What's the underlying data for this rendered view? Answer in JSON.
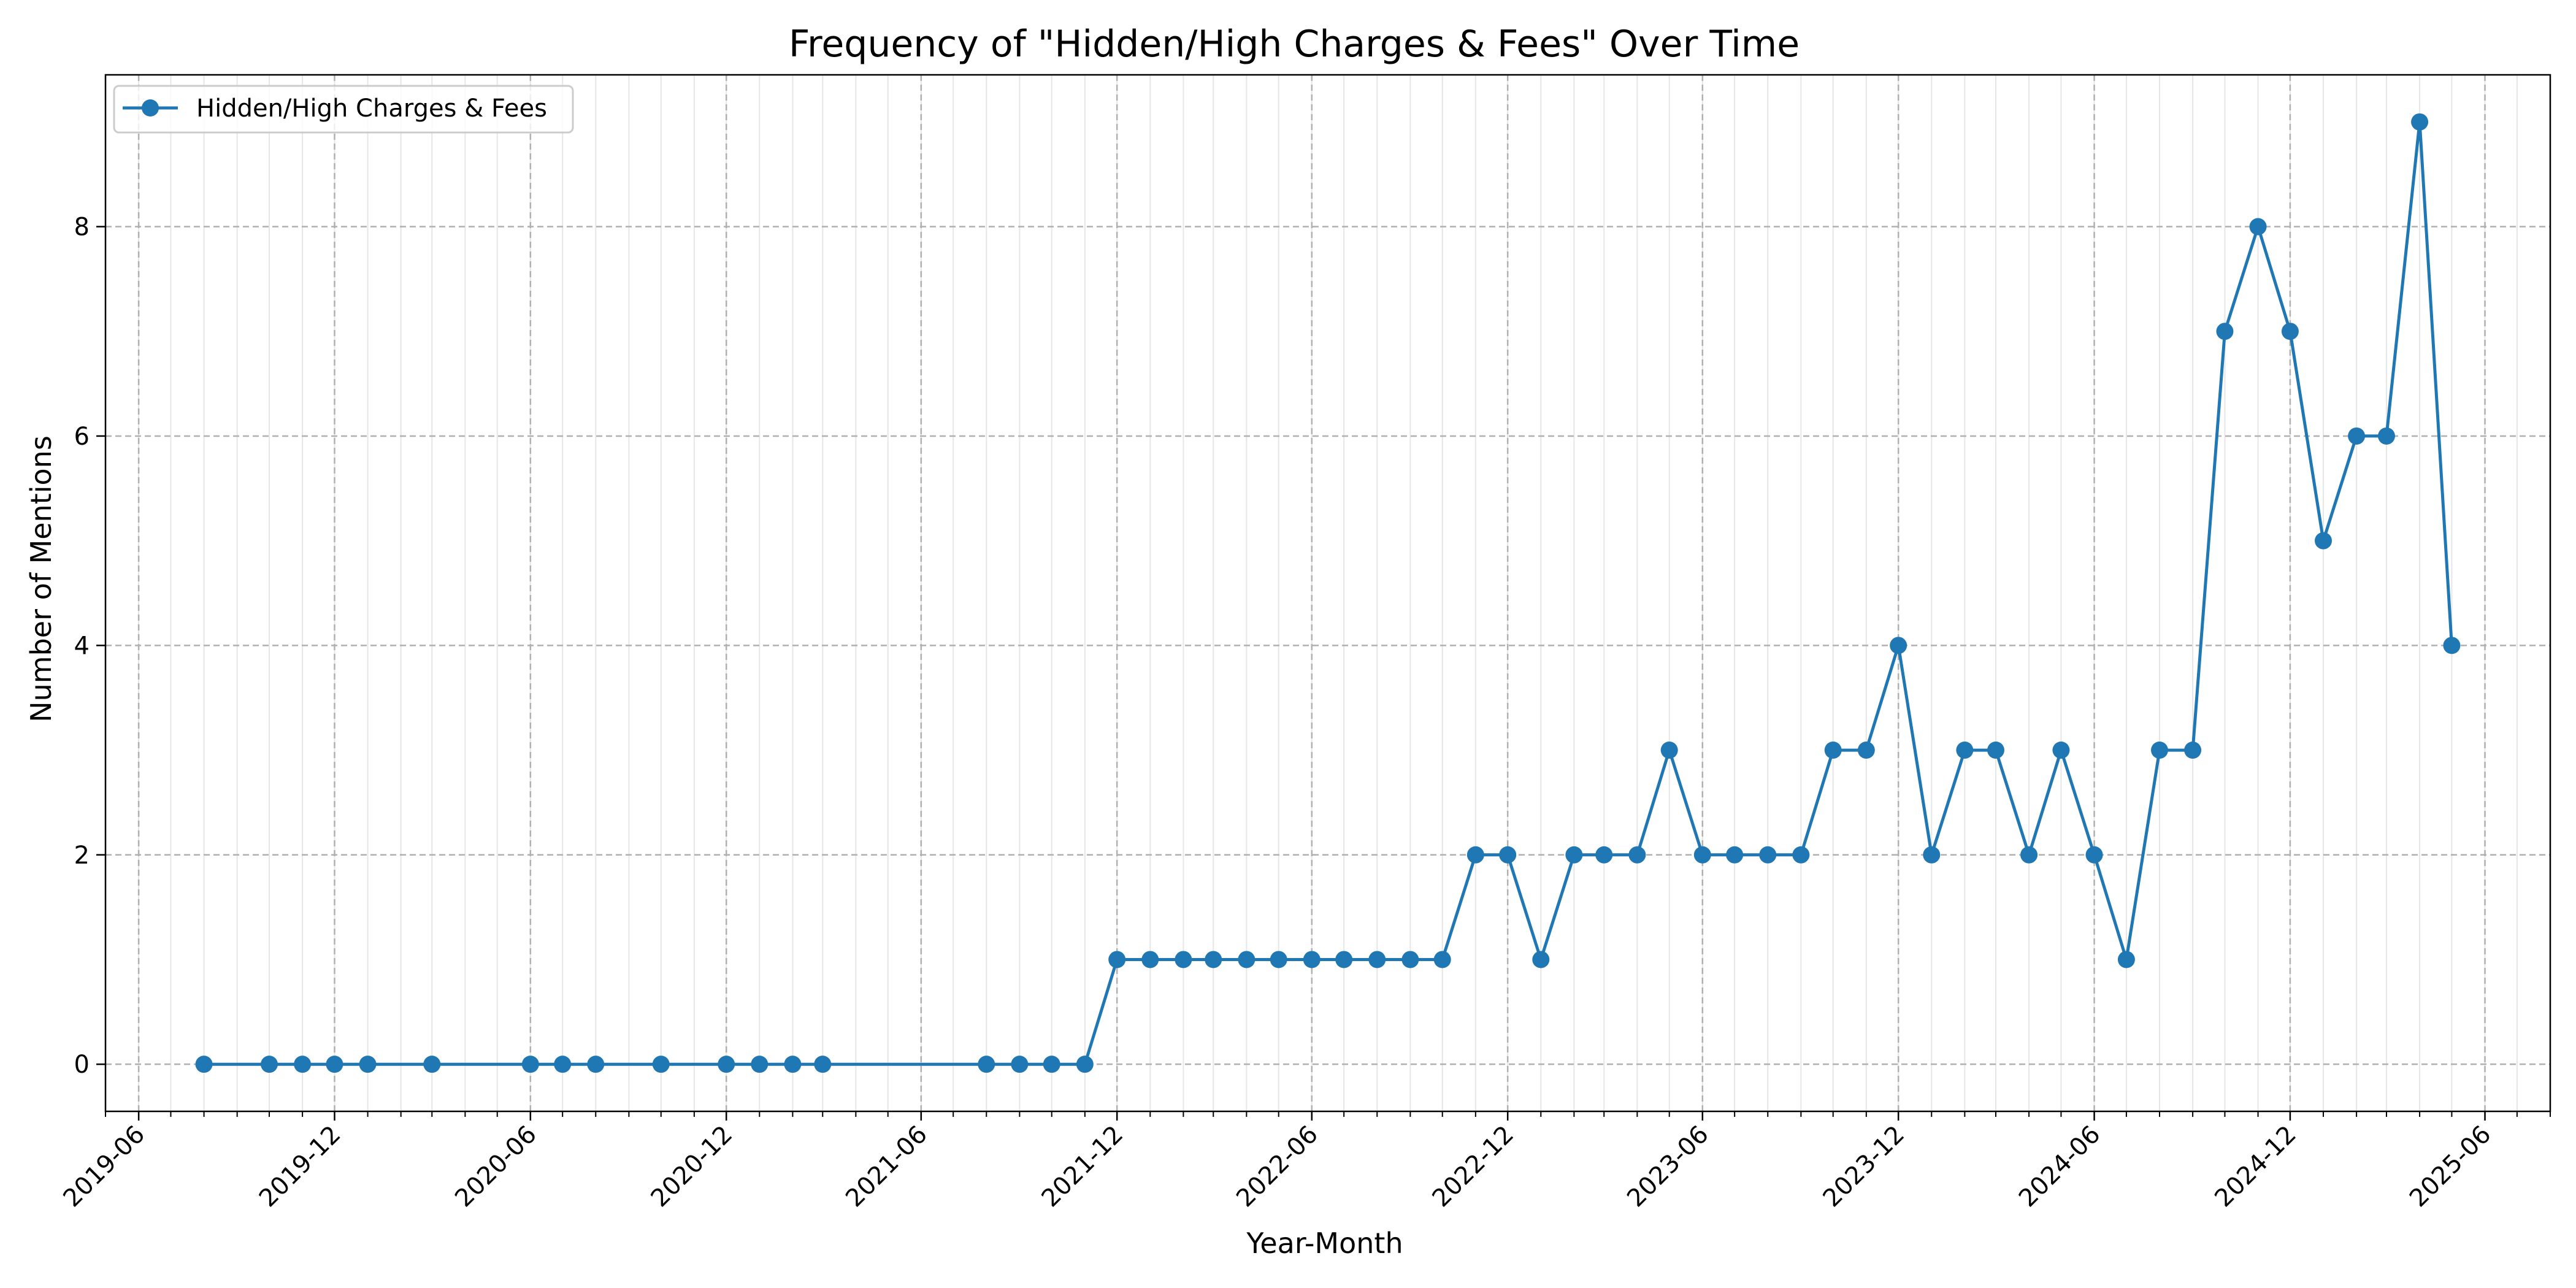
{
  "chart_data": {
    "type": "line",
    "title": "Frequency of \"Hidden/High Charges & Fees\" Over Time",
    "xlabel": "Year-Month",
    "ylabel": "Number of Mentions",
    "x_tick_labels": [
      "2019-06",
      "2019-12",
      "2020-06",
      "2020-12",
      "2021-06",
      "2021-12",
      "2022-06",
      "2022-12",
      "2023-06",
      "2023-12",
      "2024-06",
      "2024-12",
      "2025-06"
    ],
    "y_ticks": [
      0,
      2,
      4,
      6,
      8
    ],
    "xlim": [
      "2019-05-01",
      "2025-08-01"
    ],
    "ylim": [
      -0.45,
      9.45
    ],
    "grid": true,
    "legend_position": "upper-left",
    "colors": {
      "series": "#1f77b4",
      "grid": "#b0b0b0",
      "minor_grid": "#e6e6e6"
    },
    "series": [
      {
        "name": "Hidden/High Charges & Fees",
        "x": [
          "2019-08",
          "2019-10",
          "2019-11",
          "2019-12",
          "2020-01",
          "2020-03",
          "2020-06",
          "2020-07",
          "2020-08",
          "2020-10",
          "2020-12",
          "2021-01",
          "2021-02",
          "2021-03",
          "2021-08",
          "2021-09",
          "2021-10",
          "2021-11",
          "2021-12",
          "2022-01",
          "2022-02",
          "2022-03",
          "2022-04",
          "2022-05",
          "2022-06",
          "2022-07",
          "2022-08",
          "2022-09",
          "2022-10",
          "2022-11",
          "2022-12",
          "2023-01",
          "2023-02",
          "2023-03",
          "2023-04",
          "2023-05",
          "2023-06",
          "2023-07",
          "2023-08",
          "2023-09",
          "2023-10",
          "2023-11",
          "2023-12",
          "2024-01",
          "2024-02",
          "2024-03",
          "2024-04",
          "2024-05",
          "2024-06",
          "2024-07",
          "2024-08",
          "2024-09",
          "2024-10",
          "2024-11",
          "2024-12",
          "2025-01",
          "2025-02",
          "2025-03",
          "2025-04",
          "2025-05"
        ],
        "values": [
          0,
          0,
          0,
          0,
          0,
          0,
          0,
          0,
          0,
          0,
          0,
          0,
          0,
          0,
          0,
          0,
          0,
          0,
          1,
          1,
          1,
          1,
          1,
          1,
          1,
          1,
          1,
          1,
          1,
          2,
          2,
          1,
          2,
          2,
          2,
          3,
          2,
          2,
          2,
          2,
          3,
          3,
          4,
          2,
          3,
          3,
          2,
          3,
          2,
          1,
          3,
          3,
          7,
          8,
          7,
          5,
          6,
          6,
          9,
          4
        ]
      }
    ]
  }
}
